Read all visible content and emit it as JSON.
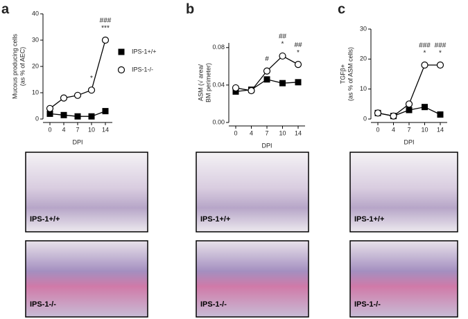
{
  "chart_data": [
    {
      "type": "line",
      "label": "a",
      "ylabel": [
        "Mucous producing cells",
        "(as % of AEC)"
      ],
      "xlabel": "DPI",
      "categories": [
        "0",
        "4",
        "7",
        "10",
        "14"
      ],
      "ylim": [
        0,
        40
      ],
      "yticks": [
        0,
        10,
        20,
        30,
        40
      ],
      "series": [
        {
          "name": "IPS-1+/+",
          "color": "#000000",
          "fill": "#000000",
          "marker": "square",
          "values": [
            2,
            1.5,
            1,
            1,
            3
          ]
        },
        {
          "name": "IPS-1-/-",
          "color": "#000000",
          "fill": "#ffffff",
          "marker": "circle",
          "values": [
            4,
            8,
            9,
            11,
            30
          ]
        }
      ],
      "legend": "right",
      "annotations": [
        {
          "text": "*",
          "category": "10",
          "color": "#000000"
        },
        {
          "text": "***",
          "category": "14",
          "color": "#000000"
        },
        {
          "text": "###",
          "category": "14",
          "color": "#777777"
        }
      ],
      "micrographs": [
        "IPS-1+/+",
        "IPS-1-/-"
      ]
    },
    {
      "type": "line",
      "label": "b",
      "ylabel": [
        "ASM (√ area/",
        "BM perimeter)"
      ],
      "xlabel": "DPI",
      "categories": [
        "0",
        "4",
        "7",
        "10",
        "14"
      ],
      "ylim": [
        0,
        0.085
      ],
      "yticks": [
        {
          "value": 0,
          "label": "0.00"
        },
        {
          "value": 0.04,
          "label": "0.04"
        },
        {
          "value": 0.08,
          "label": "0.08"
        }
      ],
      "series": [
        {
          "name": "IPS-1+/+",
          "color": "#000000",
          "fill": "#000000",
          "marker": "square",
          "values": [
            0.033,
            0.035,
            0.046,
            0.042,
            0.043
          ]
        },
        {
          "name": "IPS-1-/-",
          "color": "#000000",
          "fill": "#ffffff",
          "marker": "circle",
          "values": [
            0.037,
            0.034,
            0.055,
            0.071,
            0.062
          ]
        }
      ],
      "annotations": [
        {
          "text": "#",
          "category": "7",
          "color": "#777777"
        },
        {
          "text": "*",
          "category": "10",
          "color": "#000000"
        },
        {
          "text": "##",
          "category": "10",
          "color": "#777777"
        },
        {
          "text": "*",
          "category": "14",
          "color": "#000000"
        },
        {
          "text": "##",
          "category": "14",
          "color": "#777777"
        }
      ],
      "micrographs": [
        "IPS-1+/+",
        "IPS-1-/-"
      ]
    },
    {
      "type": "line",
      "label": "c",
      "ylabel": [
        "TGFβ+",
        "(as % of ASM cells)"
      ],
      "xlabel": "DPI",
      "categories": [
        "0",
        "4",
        "7",
        "10",
        "14"
      ],
      "ylim": [
        0,
        30
      ],
      "yticks": [
        0,
        10,
        20,
        30
      ],
      "series": [
        {
          "name": "IPS-1+/+",
          "color": "#000000",
          "fill": "#000000",
          "marker": "square",
          "values": [
            2,
            1,
            3,
            4,
            1.5
          ]
        },
        {
          "name": "IPS-1-/-",
          "color": "#000000",
          "fill": "#ffffff",
          "marker": "circle",
          "values": [
            2,
            1,
            5,
            18,
            18
          ]
        }
      ],
      "annotations": [
        {
          "text": "*",
          "category": "10",
          "color": "#000000"
        },
        {
          "text": "###",
          "category": "10",
          "color": "#777777"
        },
        {
          "text": "*",
          "category": "14",
          "color": "#000000"
        },
        {
          "text": "###",
          "category": "14",
          "color": "#777777"
        }
      ],
      "micrographs": [
        "IPS-1+/+",
        "IPS-1-/-"
      ]
    }
  ]
}
